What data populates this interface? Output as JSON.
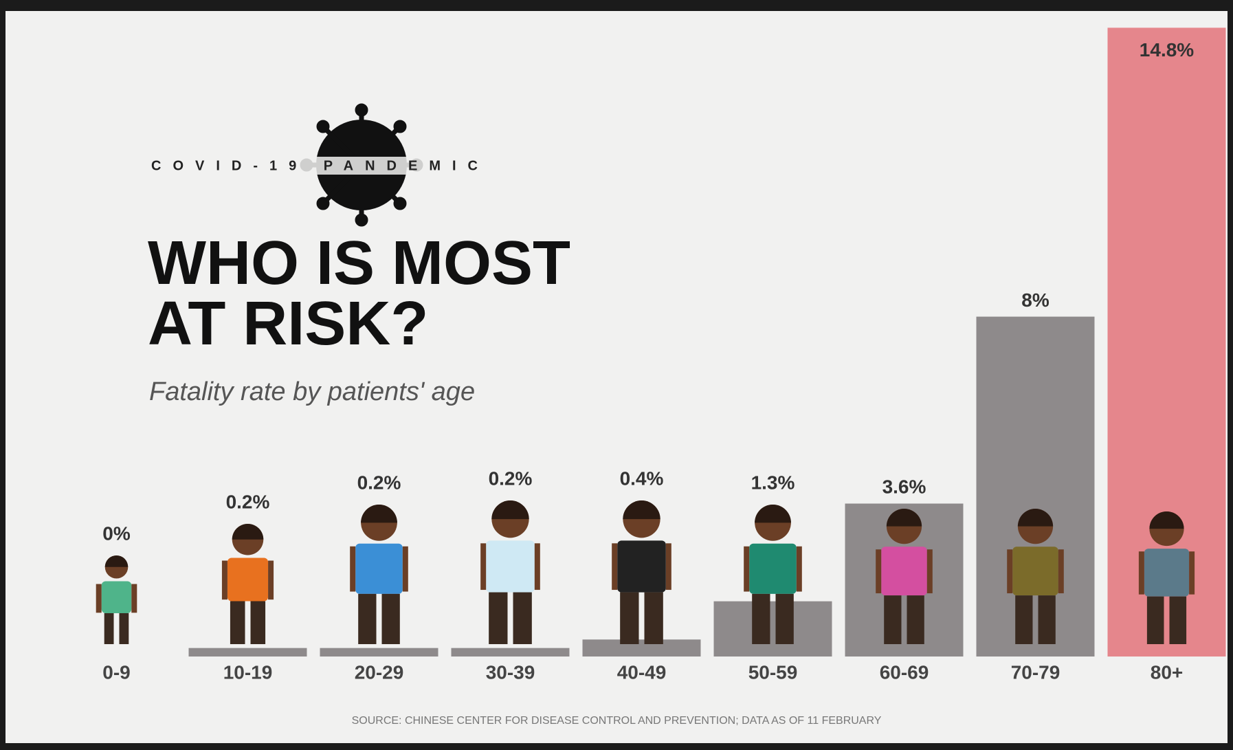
{
  "logo_text": "COVID-19 PANDEMIC",
  "chart_data": {
    "type": "bar",
    "title": [
      "WHO IS MOST",
      "AT RISK?"
    ],
    "subtitle": "Fatality rate by patients' age",
    "categories": [
      "0-9",
      "10-19",
      "20-29",
      "30-39",
      "40-49",
      "50-59",
      "60-69",
      "70-79",
      "80+"
    ],
    "values": [
      0,
      0.2,
      0.2,
      0.2,
      0.4,
      1.3,
      3.6,
      8,
      14.8
    ],
    "value_labels": [
      "0%",
      "0.2%",
      "0.2%",
      "0.2%",
      "0.4%",
      "1.3%",
      "3.6%",
      "8%",
      "14.8%"
    ],
    "colors": [
      "#8e8a8b",
      "#8e8a8b",
      "#8e8a8b",
      "#8e8a8b",
      "#8e8a8b",
      "#8e8a8b",
      "#8e8a8b",
      "#8e8a8b",
      "#e5868c"
    ],
    "source": "SOURCE: CHINESE CENTER FOR DISEASE CONTROL AND PREVENTION; DATA AS OF 11 FEBRUARY"
  }
}
